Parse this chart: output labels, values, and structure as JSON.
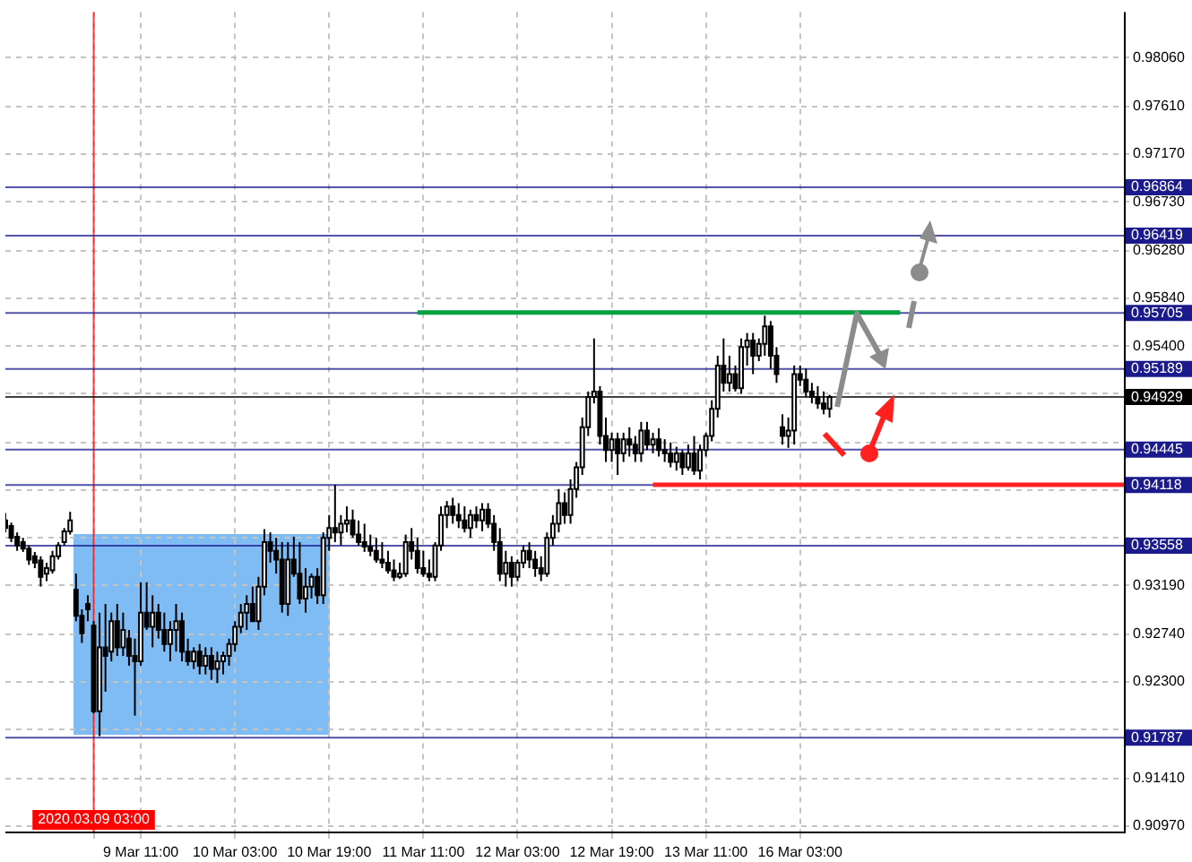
{
  "chart_data": {
    "type": "candlestick",
    "categories": [
      null,
      null,
      null,
      null,
      null,
      null,
      null,
      null,
      null,
      null,
      null,
      null,
      null,
      null,
      null,
      "2020.03.09 03:00",
      null,
      null,
      null,
      null,
      null,
      null,
      null,
      "9 Mar 11:00",
      null,
      null,
      null,
      null,
      null,
      null,
      null,
      null,
      null,
      null,
      null,
      null,
      null,
      null,
      null,
      "10 Mar 03:00",
      null,
      null,
      null,
      null,
      null,
      null,
      null,
      null,
      null,
      null,
      null,
      null,
      null,
      null,
      null,
      "10 Mar 19:00",
      null,
      null,
      null,
      null,
      null,
      null,
      null,
      null,
      null,
      null,
      null,
      null,
      null,
      null,
      null,
      "11 Mar 11:00",
      null,
      null,
      null,
      null,
      null,
      null,
      null,
      null,
      null,
      null,
      null,
      null,
      null,
      null,
      null,
      "12 Mar 03:00",
      null,
      null,
      null,
      null,
      null,
      null,
      null,
      null,
      null,
      null,
      null,
      null,
      null,
      null,
      null,
      "12 Mar 19:00",
      null,
      null,
      null,
      null,
      null,
      null,
      null,
      null,
      null,
      null,
      null,
      null,
      null,
      null,
      null,
      "13 Mar 11:00",
      null,
      null,
      null,
      null,
      null,
      null,
      null,
      null,
      null,
      null,
      null,
      null,
      null,
      null,
      null,
      "16 Mar 03:00",
      null,
      null,
      null,
      null,
      null,
      null,
      null,
      null,
      null,
      null,
      null,
      null,
      null,
      null,
      null,
      null,
      null,
      null,
      null,
      null,
      null,
      null,
      null,
      null,
      null,
      null,
      null,
      null,
      null,
      null,
      null,
      null,
      null,
      null,
      null,
      null,
      null,
      null,
      null,
      null,
      null,
      null,
      null,
      null,
      null,
      null,
      null,
      null,
      null,
      null,
      null,
      null,
      null,
      null,
      null
    ],
    "ylim": [
      0.9092,
      0.9848
    ],
    "yticks": [
      {
        "value": 0.9806,
        "label": "0.98060"
      },
      {
        "value": 0.9761,
        "label": "0.97610"
      },
      {
        "value": 0.9717,
        "label": "0.97170"
      },
      {
        "value": 0.9673,
        "label": "0.96730"
      },
      {
        "value": 0.9628,
        "label": "0.96280"
      },
      {
        "value": 0.9584,
        "label": "0.95840"
      },
      {
        "value": 0.954,
        "label": "0.95400"
      },
      {
        "value": 0.9496,
        "label": null
      },
      {
        "value": 0.9451,
        "label": null
      },
      {
        "value": 0.9407,
        "label": null
      },
      {
        "value": 0.9363,
        "label": null
      },
      {
        "value": 0.9319,
        "label": "0.93190"
      },
      {
        "value": 0.9274,
        "label": "0.92740"
      },
      {
        "value": 0.923,
        "label": "0.92300"
      },
      {
        "value": 0.9186,
        "label": null
      },
      {
        "value": 0.9141,
        "label": "0.91410"
      },
      {
        "value": 0.9097,
        "label": "0.90970"
      }
    ],
    "grid": true,
    "ohlc": [
      [
        0.9379,
        0.9386,
        0.9368,
        0.9372
      ],
      [
        0.9374,
        0.9377,
        0.9359,
        0.9363
      ],
      [
        0.9364,
        0.9368,
        0.9351,
        0.9356
      ],
      [
        0.9359,
        0.9363,
        0.935,
        0.9353
      ],
      [
        0.9353,
        0.9356,
        0.9338,
        0.9343
      ],
      [
        0.9346,
        0.935,
        0.9335,
        0.934
      ],
      [
        0.9342,
        0.9346,
        0.9318,
        0.9327
      ],
      [
        0.933,
        0.934,
        0.9323,
        0.9335
      ],
      [
        0.9333,
        0.9351,
        0.933,
        0.9346
      ],
      [
        0.9346,
        0.9359,
        0.9343,
        0.9356
      ],
      [
        0.9359,
        0.9372,
        0.9356,
        0.9369
      ],
      [
        0.9369,
        0.9387,
        0.9366,
        0.9379
      ],
      [
        0.9315,
        0.933,
        0.9286,
        0.9291
      ],
      [
        0.9291,
        0.9297,
        0.9266,
        0.9275
      ],
      [
        0.9302,
        0.931,
        0.9286,
        0.9297
      ],
      [
        0.9282,
        0.9286,
        0.9201,
        0.9203
      ],
      [
        0.9203,
        0.9294,
        0.918,
        0.9262
      ],
      [
        0.9262,
        0.9302,
        0.9221,
        0.9254
      ],
      [
        0.9258,
        0.9294,
        0.9249,
        0.9286
      ],
      [
        0.9286,
        0.9302,
        0.9254,
        0.9262
      ],
      [
        0.9262,
        0.9294,
        0.9254,
        0.9278
      ],
      [
        0.927,
        0.9278,
        0.9245,
        0.9254
      ],
      [
        0.9254,
        0.927,
        0.9199,
        0.9249
      ],
      [
        0.9249,
        0.9322,
        0.9245,
        0.9294
      ],
      [
        0.9294,
        0.9322,
        0.9278,
        0.9281
      ],
      [
        0.9281,
        0.931,
        0.9262,
        0.9294
      ],
      [
        0.9294,
        0.9302,
        0.927,
        0.9278
      ],
      [
        0.9278,
        0.9294,
        0.9258,
        0.9265
      ],
      [
        0.9265,
        0.9286,
        0.9249,
        0.9278
      ],
      [
        0.9278,
        0.9302,
        0.9258,
        0.9286
      ],
      [
        0.9286,
        0.9294,
        0.9249,
        0.9258
      ],
      [
        0.9258,
        0.927,
        0.9245,
        0.9249
      ],
      [
        0.9249,
        0.9262,
        0.9242,
        0.9258
      ],
      [
        0.9258,
        0.9265,
        0.9237,
        0.9245
      ],
      [
        0.9245,
        0.9262,
        0.9237,
        0.9254
      ],
      [
        0.9254,
        0.9262,
        0.9232,
        0.9242
      ],
      [
        0.9242,
        0.9258,
        0.9229,
        0.9249
      ],
      [
        0.9249,
        0.9258,
        0.9237,
        0.9254
      ],
      [
        0.9254,
        0.927,
        0.9245,
        0.9265
      ],
      [
        0.9265,
        0.9286,
        0.9258,
        0.9281
      ],
      [
        0.9281,
        0.9302,
        0.9275,
        0.9294
      ],
      [
        0.9294,
        0.931,
        0.9278,
        0.9302
      ],
      [
        0.9302,
        0.9318,
        0.9286,
        0.9286
      ],
      [
        0.9286,
        0.9327,
        0.9278,
        0.9318
      ],
      [
        0.9318,
        0.9371,
        0.931,
        0.9359
      ],
      [
        0.9359,
        0.9368,
        0.934,
        0.9351
      ],
      [
        0.9351,
        0.9363,
        0.933,
        0.9343
      ],
      [
        0.9343,
        0.9359,
        0.9294,
        0.9302
      ],
      [
        0.9302,
        0.9359,
        0.9291,
        0.9343
      ],
      [
        0.9343,
        0.9364,
        0.9327,
        0.933
      ],
      [
        0.933,
        0.9359,
        0.9302,
        0.9307
      ],
      [
        0.9307,
        0.9335,
        0.9294,
        0.9318
      ],
      [
        0.9318,
        0.933,
        0.9307,
        0.9327
      ],
      [
        0.9327,
        0.9335,
        0.9302,
        0.931
      ],
      [
        0.931,
        0.9368,
        0.9302,
        0.9363
      ],
      [
        0.9363,
        0.9384,
        0.9351,
        0.9372
      ],
      [
        0.9372,
        0.9412,
        0.9359,
        0.9368
      ],
      [
        0.9368,
        0.9384,
        0.9356,
        0.9376
      ],
      [
        0.9376,
        0.9392,
        0.9368,
        0.9379
      ],
      [
        0.9379,
        0.9389,
        0.9363,
        0.9366
      ],
      [
        0.9366,
        0.9379,
        0.9356,
        0.9359
      ],
      [
        0.9359,
        0.9376,
        0.935,
        0.9355
      ],
      [
        0.9355,
        0.9366,
        0.9346,
        0.9351
      ],
      [
        0.9351,
        0.9363,
        0.934,
        0.9343
      ],
      [
        0.9343,
        0.9359,
        0.9335,
        0.934
      ],
      [
        0.934,
        0.9351,
        0.933,
        0.9333
      ],
      [
        0.9333,
        0.9343,
        0.9323,
        0.9327
      ],
      [
        0.9327,
        0.934,
        0.9325,
        0.933
      ],
      [
        0.933,
        0.9366,
        0.9327,
        0.9359
      ],
      [
        0.9359,
        0.9372,
        0.9343,
        0.9351
      ],
      [
        0.9351,
        0.9363,
        0.933,
        0.9335
      ],
      [
        0.9335,
        0.9351,
        0.9327,
        0.933
      ],
      [
        0.933,
        0.9343,
        0.9323,
        0.9327
      ],
      [
        0.9327,
        0.9359,
        0.9323,
        0.9356
      ],
      [
        0.9356,
        0.9392,
        0.9351,
        0.9384
      ],
      [
        0.9384,
        0.9397,
        0.9372,
        0.9392
      ],
      [
        0.9392,
        0.94,
        0.9376,
        0.9384
      ],
      [
        0.9384,
        0.9395,
        0.9372,
        0.9379
      ],
      [
        0.9379,
        0.9392,
        0.9368,
        0.9372
      ],
      [
        0.9372,
        0.9389,
        0.9363,
        0.9384
      ],
      [
        0.9384,
        0.9392,
        0.9372,
        0.9379
      ],
      [
        0.9379,
        0.9395,
        0.9369,
        0.9389
      ],
      [
        0.9389,
        0.9395,
        0.9372,
        0.9376
      ],
      [
        0.9376,
        0.9384,
        0.9351,
        0.9359
      ],
      [
        0.9359,
        0.9372,
        0.9323,
        0.933
      ],
      [
        0.933,
        0.9351,
        0.9318,
        0.934
      ],
      [
        0.934,
        0.9346,
        0.9318,
        0.9327
      ],
      [
        0.9327,
        0.9343,
        0.9323,
        0.934
      ],
      [
        0.934,
        0.9356,
        0.9335,
        0.9351
      ],
      [
        0.9351,
        0.9359,
        0.9335,
        0.9343
      ],
      [
        0.9343,
        0.9351,
        0.9327,
        0.9335
      ],
      [
        0.9335,
        0.9346,
        0.9323,
        0.933
      ],
      [
        0.933,
        0.9368,
        0.9327,
        0.9363
      ],
      [
        0.9363,
        0.9384,
        0.9356,
        0.9376
      ],
      [
        0.9376,
        0.9408,
        0.9368,
        0.9395
      ],
      [
        0.9395,
        0.9405,
        0.9376,
        0.9384
      ],
      [
        0.9384,
        0.9417,
        0.9376,
        0.9408
      ],
      [
        0.9408,
        0.9433,
        0.94,
        0.9428
      ],
      [
        0.9428,
        0.9474,
        0.9421,
        0.9465
      ],
      [
        0.9465,
        0.9498,
        0.9457,
        0.9493
      ],
      [
        0.9493,
        0.9547,
        0.9487,
        0.9498
      ],
      [
        0.9498,
        0.9503,
        0.9449,
        0.9457
      ],
      [
        0.9457,
        0.9474,
        0.9433,
        0.9444
      ],
      [
        0.9444,
        0.946,
        0.9433,
        0.9454
      ],
      [
        0.9454,
        0.946,
        0.9421,
        0.9441
      ],
      [
        0.9441,
        0.946,
        0.9433,
        0.9454
      ],
      [
        0.9454,
        0.9465,
        0.9438,
        0.9449
      ],
      [
        0.9449,
        0.9457,
        0.9433,
        0.9441
      ],
      [
        0.9441,
        0.947,
        0.9433,
        0.9462
      ],
      [
        0.9462,
        0.947,
        0.9444,
        0.9449
      ],
      [
        0.9449,
        0.946,
        0.9441,
        0.9454
      ],
      [
        0.9454,
        0.9464,
        0.9438,
        0.9444
      ],
      [
        0.9444,
        0.9454,
        0.9433,
        0.9441
      ],
      [
        0.9441,
        0.9451,
        0.9428,
        0.9433
      ],
      [
        0.9433,
        0.9447,
        0.9425,
        0.9441
      ],
      [
        0.9441,
        0.9444,
        0.9421,
        0.9428
      ],
      [
        0.9428,
        0.9449,
        0.9425,
        0.9441
      ],
      [
        0.9441,
        0.9457,
        0.9421,
        0.9425
      ],
      [
        0.9425,
        0.9449,
        0.9417,
        0.9444
      ],
      [
        0.9444,
        0.946,
        0.9438,
        0.9457
      ],
      [
        0.9457,
        0.949,
        0.9452,
        0.9482
      ],
      [
        0.9482,
        0.9531,
        0.9474,
        0.9522
      ],
      [
        0.9522,
        0.9547,
        0.9498,
        0.9506
      ],
      [
        0.9506,
        0.9531,
        0.9498,
        0.9514
      ],
      [
        0.9514,
        0.9522,
        0.9498,
        0.9501
      ],
      [
        0.9501,
        0.9547,
        0.9496,
        0.9539
      ],
      [
        0.9539,
        0.9552,
        0.9522,
        0.9545
      ],
      [
        0.9545,
        0.9552,
        0.9514,
        0.9531
      ],
      [
        0.9531,
        0.9547,
        0.9526,
        0.9542
      ],
      [
        0.9542,
        0.9568,
        0.9531,
        0.9558
      ],
      [
        0.9558,
        0.9563,
        0.9519,
        0.9531
      ],
      [
        0.9531,
        0.9539,
        0.9506,
        0.9514
      ],
      [
        0.9465,
        0.9477,
        0.9449,
        0.9457
      ],
      [
        0.9457,
        0.9474,
        0.9446,
        0.9462
      ],
      [
        0.9462,
        0.9522,
        0.9449,
        0.9514
      ],
      [
        0.9514,
        0.9522,
        0.9503,
        0.9509
      ],
      [
        0.9509,
        0.9519,
        0.9493,
        0.9498
      ],
      [
        0.9498,
        0.9506,
        0.9487,
        0.9493
      ],
      [
        0.9493,
        0.9503,
        0.9482,
        0.9487
      ],
      [
        0.9487,
        0.9498,
        0.9477,
        0.9482
      ],
      [
        0.9482,
        0.9495,
        0.9474,
        0.94929
      ],
      null,
      null,
      null,
      null,
      null,
      null,
      null,
      null,
      null,
      null,
      null,
      null,
      null,
      null,
      null,
      null,
      null,
      null,
      null,
      null,
      null,
      null,
      null,
      null,
      null,
      null,
      null,
      null,
      null,
      null,
      null,
      null,
      null,
      null,
      null,
      null,
      null,
      null,
      null,
      null,
      null,
      null,
      null,
      null,
      null,
      null,
      null,
      null,
      null,
      null
    ],
    "series": [
      {
        "type": "line",
        "color": "#00a040",
        "values": [
          null,
          null,
          null,
          null,
          null,
          null,
          null,
          null,
          null,
          null,
          null,
          null,
          null,
          null,
          null,
          null,
          null,
          null,
          null,
          null,
          null,
          null,
          null,
          null,
          null,
          null,
          null,
          null,
          null,
          null,
          null,
          null,
          null,
          null,
          null,
          null,
          null,
          null,
          null,
          null,
          null,
          null,
          null,
          null,
          null,
          null,
          null,
          null,
          null,
          null,
          null,
          null,
          null,
          null,
          null,
          null,
          null,
          null,
          null,
          null,
          null,
          null,
          null,
          null,
          null,
          null,
          null,
          null,
          null,
          null,
          0.9571,
          null,
          null,
          null,
          null,
          null,
          null,
          null,
          null,
          null,
          null,
          null,
          null,
          null,
          null,
          null,
          null,
          null,
          null,
          null,
          null,
          null,
          null,
          null,
          null,
          null,
          null,
          null,
          null,
          null,
          null,
          null,
          null,
          null,
          null,
          null,
          null,
          null,
          null,
          null,
          null,
          null,
          null,
          null,
          null,
          null,
          null,
          null,
          null,
          null,
          null,
          null,
          null,
          null,
          null,
          null,
          null,
          null,
          null,
          null,
          null,
          null,
          null,
          null,
          null,
          null,
          null,
          null,
          null,
          null,
          null,
          null,
          null,
          null,
          null,
          null,
          null,
          null,
          null,
          null,
          null,
          null,
          0.9571,
          null,
          null,
          null,
          null,
          null,
          null,
          null,
          null,
          null,
          null,
          null,
          null,
          null,
          null,
          null,
          null,
          null,
          null,
          null,
          null,
          null,
          null,
          null,
          null,
          null,
          null,
          null,
          null,
          null,
          null,
          null,
          null,
          null,
          null,
          null,
          null,
          null,
          null
        ]
      },
      {
        "type": "line",
        "color": "#ff2020",
        "values": [
          null,
          null,
          null,
          null,
          null,
          null,
          null,
          null,
          null,
          null,
          null,
          null,
          null,
          null,
          null,
          null,
          null,
          null,
          null,
          null,
          null,
          null,
          null,
          null,
          null,
          null,
          null,
          null,
          null,
          null,
          null,
          null,
          null,
          null,
          null,
          null,
          null,
          null,
          null,
          null,
          null,
          null,
          null,
          null,
          null,
          null,
          null,
          null,
          null,
          null,
          null,
          null,
          null,
          null,
          null,
          null,
          null,
          null,
          null,
          null,
          null,
          null,
          null,
          null,
          null,
          null,
          null,
          null,
          null,
          null,
          null,
          null,
          null,
          null,
          null,
          null,
          null,
          null,
          null,
          null,
          null,
          null,
          null,
          null,
          null,
          null,
          null,
          null,
          null,
          null,
          null,
          null,
          null,
          null,
          null,
          null,
          null,
          null,
          null,
          null,
          null,
          null,
          null,
          null,
          null,
          null,
          null,
          null,
          null,
          null,
          0.9412,
          null,
          null,
          null,
          null,
          null,
          null,
          null,
          null,
          null,
          null,
          null,
          null,
          null,
          null,
          null,
          null,
          null,
          null,
          null,
          null,
          null,
          null,
          null,
          null,
          null,
          null,
          null,
          null,
          null,
          null,
          null,
          null,
          null,
          null,
          null,
          null,
          null,
          null,
          null,
          null,
          null,
          null,
          null,
          null,
          null,
          null,
          null,
          null,
          null,
          null,
          null,
          null,
          null,
          null,
          null,
          null,
          null,
          null,
          null,
          null,
          null,
          null,
          null,
          null,
          null,
          null,
          null,
          null,
          null,
          null,
          null,
          null,
          null,
          null,
          null,
          null,
          null,
          null,
          null,
          0.9412
        ]
      }
    ],
    "ref_lines": [
      {
        "axis": "x",
        "value": "2020.03.09 03:00",
        "color": "#ff0000"
      },
      {
        "axis": "y",
        "value": 0.96864,
        "label": "0.96864",
        "color": "#1a1a8c"
      },
      {
        "axis": "y",
        "value": 0.96419,
        "label": "0.96419",
        "color": "#1a1a8c"
      },
      {
        "axis": "y",
        "value": 0.95705,
        "label": "0.95705",
        "color": "#1a1a8c"
      },
      {
        "axis": "y",
        "value": 0.95189,
        "label": "0.95189",
        "color": "#1a1a8c"
      },
      {
        "axis": "y",
        "value": 0.94929,
        "label": "0.94929",
        "color": "#000000"
      },
      {
        "axis": "y",
        "value": 0.94445,
        "label": "0.94445",
        "color": "#1a1a8c"
      },
      {
        "axis": "y",
        "value": 0.94118,
        "label": "0.94118",
        "color": "#1a1a8c"
      },
      {
        "axis": "y",
        "value": 0.93558,
        "label": "0.93558",
        "color": "#1a1a8c"
      },
      {
        "axis": "y",
        "value": 0.91787,
        "label": "0.91787",
        "color": "#1a1a8c"
      }
    ]
  }
}
